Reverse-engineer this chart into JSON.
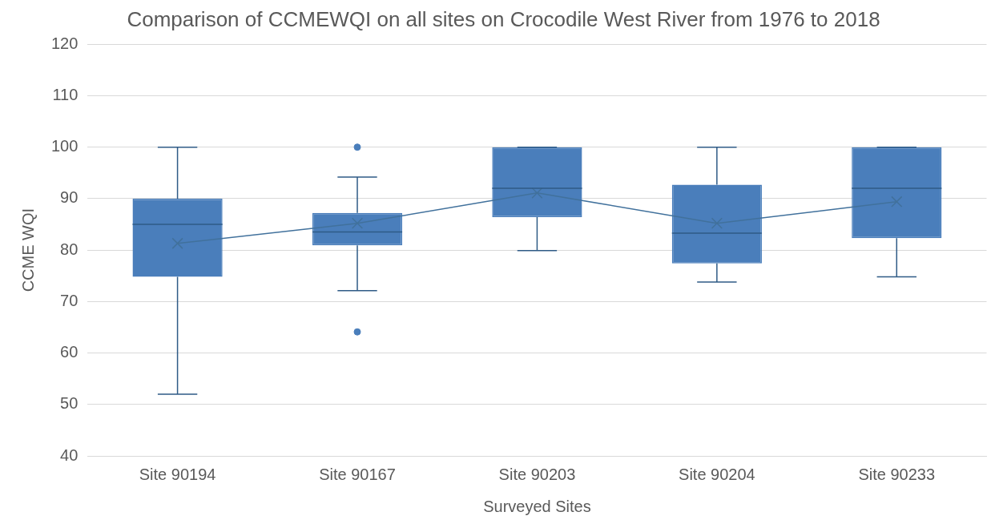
{
  "chart_data": {
    "type": "box",
    "title": "Comparison of CCMEWQI on all sites on Crocodile West River from 1976 to 2018",
    "xlabel": "Surveyed Sites",
    "ylabel": "CCME WQI",
    "categories": [
      "Site 90194",
      "Site 90167",
      "Site 90203",
      "Site 90204",
      "Site 90233"
    ],
    "color": "#4a7ebb",
    "boxes": [
      {
        "low": 52,
        "q1": 74.8,
        "median": 85,
        "q3": 90,
        "high": 100
      },
      {
        "low": 72.1,
        "q1": 80.9,
        "median": 83.5,
        "q3": 87.2,
        "high": 94.2,
        "outliers": [
          100,
          64.1
        ]
      },
      {
        "low": 79.9,
        "q1": 86.4,
        "median": 92,
        "q3": 100,
        "high": 100
      },
      {
        "low": 73.8,
        "q1": 77.4,
        "median": 83.3,
        "q3": 92.7,
        "high": 100
      },
      {
        "low": 74.8,
        "q1": 82.3,
        "median": 92,
        "q3": 100,
        "high": 100
      }
    ],
    "series": [
      {
        "type": "line",
        "color": "#41719c",
        "marker": "cross",
        "values": [
          81.3,
          85.2,
          91.1,
          85.2,
          89.4
        ]
      }
    ],
    "ylim": [
      40,
      120
    ],
    "yticks": [
      40,
      50,
      60,
      70,
      80,
      90,
      100,
      110,
      120
    ],
    "grid": "y",
    "legend": false
  }
}
